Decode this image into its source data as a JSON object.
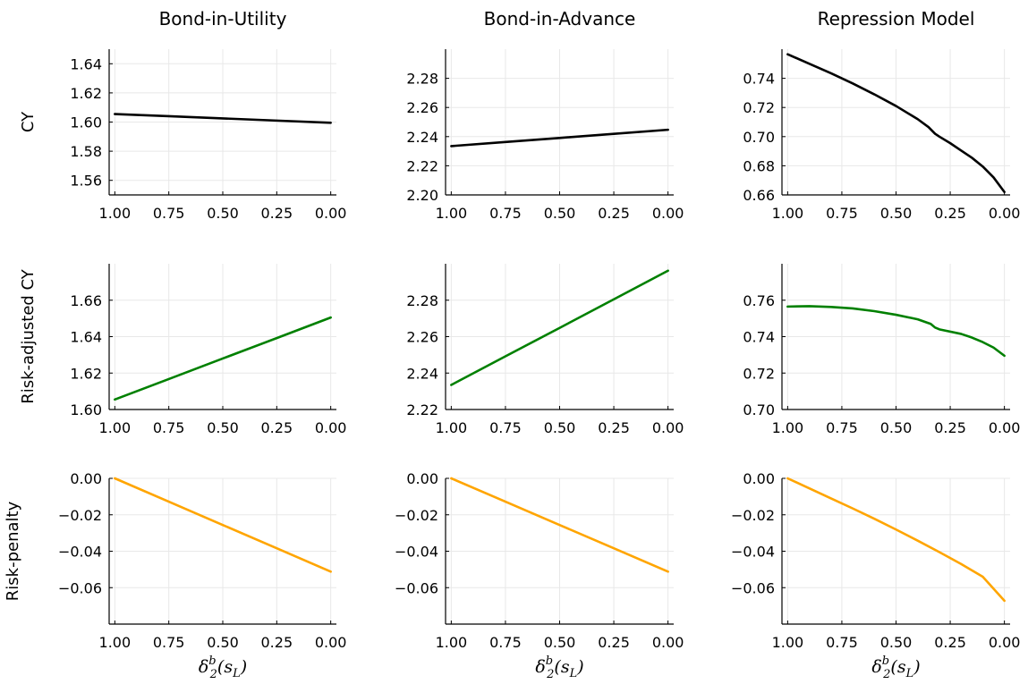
{
  "chart_data": [
    {
      "type": "line",
      "row": 0,
      "col": 0,
      "title": "Bond-in-Utility",
      "ylabel": "CY",
      "xlabel": "",
      "xlim": [
        1.0,
        0.0
      ],
      "ylim": [
        1.55,
        1.65
      ],
      "xticks": [
        "1.00",
        "0.75",
        "0.50",
        "0.25",
        "0.00"
      ],
      "xtick_values": [
        1.0,
        0.75,
        0.5,
        0.25,
        0.0
      ],
      "yticks": [
        "1.56",
        "1.58",
        "1.60",
        "1.62",
        "1.64"
      ],
      "ytick_values": [
        1.56,
        1.58,
        1.6,
        1.62,
        1.64
      ],
      "color": "#000000",
      "series": [
        {
          "x": [
            1.0,
            0.75,
            0.5,
            0.25,
            0.0
          ],
          "y": [
            1.6055,
            1.604,
            1.6025,
            1.601,
            1.5995
          ]
        }
      ]
    },
    {
      "type": "line",
      "row": 0,
      "col": 1,
      "title": "Bond-in-Advance",
      "ylabel": "",
      "xlabel": "",
      "xlim": [
        1.0,
        0.0
      ],
      "ylim": [
        2.2,
        2.3
      ],
      "xticks": [
        "1.00",
        "0.75",
        "0.50",
        "0.25",
        "0.00"
      ],
      "xtick_values": [
        1.0,
        0.75,
        0.5,
        0.25,
        0.0
      ],
      "yticks": [
        "2.20",
        "2.22",
        "2.24",
        "2.26",
        "2.28"
      ],
      "ytick_values": [
        2.2,
        2.22,
        2.24,
        2.26,
        2.28
      ],
      "color": "#000000",
      "series": [
        {
          "x": [
            1.0,
            0.75,
            0.5,
            0.25,
            0.0
          ],
          "y": [
            2.2335,
            2.2363,
            2.2391,
            2.2419,
            2.2447
          ]
        }
      ]
    },
    {
      "type": "line",
      "row": 0,
      "col": 2,
      "title": "Repression Model",
      "ylabel": "",
      "xlabel": "",
      "xlim": [
        1.0,
        0.0
      ],
      "ylim": [
        0.66,
        0.76
      ],
      "xticks": [
        "1.00",
        "0.75",
        "0.50",
        "0.25",
        "0.00"
      ],
      "xtick_values": [
        1.0,
        0.75,
        0.5,
        0.25,
        0.0
      ],
      "yticks": [
        "0.66",
        "0.68",
        "0.70",
        "0.72",
        "0.74"
      ],
      "ytick_values": [
        0.66,
        0.68,
        0.7,
        0.72,
        0.74
      ],
      "color": "#000000",
      "series": [
        {
          "x": [
            1.0,
            0.9,
            0.8,
            0.7,
            0.6,
            0.5,
            0.4,
            0.35,
            0.32,
            0.3,
            0.25,
            0.2,
            0.15,
            0.1,
            0.05,
            0.0
          ],
          "y": [
            0.7565,
            0.75,
            0.7435,
            0.7365,
            0.729,
            0.721,
            0.712,
            0.7065,
            0.702,
            0.7,
            0.6955,
            0.6905,
            0.6855,
            0.6795,
            0.672,
            0.662
          ]
        }
      ]
    },
    {
      "type": "line",
      "row": 1,
      "col": 0,
      "title": "",
      "ylabel": "Risk-adjusted CY",
      "xlabel": "",
      "xlim": [
        1.0,
        0.0
      ],
      "ylim": [
        1.6,
        1.68
      ],
      "xticks": [
        "1.00",
        "0.75",
        "0.50",
        "0.25",
        "0.00"
      ],
      "xtick_values": [
        1.0,
        0.75,
        0.5,
        0.25,
        0.0
      ],
      "yticks": [
        "1.60",
        "1.62",
        "1.64",
        "1.66"
      ],
      "ytick_values": [
        1.6,
        1.62,
        1.64,
        1.66
      ],
      "color": "#008000",
      "series": [
        {
          "x": [
            1.0,
            0.75,
            0.5,
            0.25,
            0.0
          ],
          "y": [
            1.6055,
            1.6167,
            1.628,
            1.6392,
            1.6505
          ]
        }
      ]
    },
    {
      "type": "line",
      "row": 1,
      "col": 1,
      "title": "",
      "ylabel": "",
      "xlabel": "",
      "xlim": [
        1.0,
        0.0
      ],
      "ylim": [
        2.22,
        2.3
      ],
      "xticks": [
        "1.00",
        "0.75",
        "0.50",
        "0.25",
        "0.00"
      ],
      "xtick_values": [
        1.0,
        0.75,
        0.5,
        0.25,
        0.0
      ],
      "yticks": [
        "2.22",
        "2.24",
        "2.26",
        "2.28"
      ],
      "ytick_values": [
        2.22,
        2.24,
        2.26,
        2.28
      ],
      "color": "#008000",
      "series": [
        {
          "x": [
            1.0,
            0.75,
            0.5,
            0.25,
            0.0
          ],
          "y": [
            2.2335,
            2.2492,
            2.2648,
            2.2805,
            2.2962
          ]
        }
      ]
    },
    {
      "type": "line",
      "row": 1,
      "col": 2,
      "title": "",
      "ylabel": "",
      "xlabel": "",
      "xlim": [
        1.0,
        0.0
      ],
      "ylim": [
        0.7,
        0.78
      ],
      "xticks": [
        "1.00",
        "0.75",
        "0.50",
        "0.25",
        "0.00"
      ],
      "xtick_values": [
        1.0,
        0.75,
        0.5,
        0.25,
        0.0
      ],
      "yticks": [
        "0.70",
        "0.72",
        "0.74",
        "0.76"
      ],
      "ytick_values": [
        0.7,
        0.72,
        0.74,
        0.76
      ],
      "color": "#008000",
      "series": [
        {
          "x": [
            1.0,
            0.9,
            0.8,
            0.7,
            0.6,
            0.5,
            0.4,
            0.34,
            0.32,
            0.3,
            0.2,
            0.15,
            0.1,
            0.05,
            0.0
          ],
          "y": [
            0.7565,
            0.7567,
            0.7563,
            0.7555,
            0.754,
            0.752,
            0.7495,
            0.747,
            0.745,
            0.744,
            0.7415,
            0.7395,
            0.737,
            0.734,
            0.7295
          ]
        }
      ]
    },
    {
      "type": "line",
      "row": 2,
      "col": 0,
      "title": "",
      "ylabel": "Risk-penalty",
      "xlabel": "δ₂ᵇ(s_L)",
      "xlim": [
        1.0,
        0.0
      ],
      "ylim": [
        -0.08,
        0.0
      ],
      "xticks": [
        "1.00",
        "0.75",
        "0.50",
        "0.25",
        "0.00"
      ],
      "xtick_values": [
        1.0,
        0.75,
        0.5,
        0.25,
        0.0
      ],
      "yticks": [
        "0.00",
        "−0.02",
        "−0.04",
        "−0.06"
      ],
      "ytick_values": [
        0.0,
        -0.02,
        -0.04,
        -0.06
      ],
      "color": "#FFA500",
      "series": [
        {
          "x": [
            1.0,
            0.75,
            0.5,
            0.25,
            0.0
          ],
          "y": [
            0.0,
            -0.0128,
            -0.0256,
            -0.0384,
            -0.0512
          ]
        }
      ]
    },
    {
      "type": "line",
      "row": 2,
      "col": 1,
      "title": "",
      "ylabel": "",
      "xlabel": "δ₂ᵇ(s_L)",
      "xlim": [
        1.0,
        0.0
      ],
      "ylim": [
        -0.08,
        0.0
      ],
      "xticks": [
        "1.00",
        "0.75",
        "0.50",
        "0.25",
        "0.00"
      ],
      "xtick_values": [
        1.0,
        0.75,
        0.5,
        0.25,
        0.0
      ],
      "yticks": [
        "0.00",
        "−0.02",
        "−0.04",
        "−0.06"
      ],
      "ytick_values": [
        0.0,
        -0.02,
        -0.04,
        -0.06
      ],
      "color": "#FFA500",
      "series": [
        {
          "x": [
            1.0,
            0.75,
            0.5,
            0.25,
            0.0
          ],
          "y": [
            0.0,
            -0.0128,
            -0.0256,
            -0.0384,
            -0.0512
          ]
        }
      ]
    },
    {
      "type": "line",
      "row": 2,
      "col": 2,
      "title": "",
      "ylabel": "",
      "xlabel": "δ₂ᵇ(s_L)",
      "xlim": [
        1.0,
        0.0
      ],
      "ylim": [
        -0.08,
        0.0
      ],
      "xticks": [
        "1.00",
        "0.75",
        "0.50",
        "0.25",
        "0.00"
      ],
      "xtick_values": [
        1.0,
        0.75,
        0.5,
        0.25,
        0.0
      ],
      "yticks": [
        "0.00",
        "−0.02",
        "−0.04",
        "−0.06"
      ],
      "ytick_values": [
        0.0,
        -0.02,
        -0.04,
        -0.06
      ],
      "color": "#FFA500",
      "series": [
        {
          "x": [
            1.0,
            0.9,
            0.8,
            0.7,
            0.6,
            0.5,
            0.4,
            0.3,
            0.2,
            0.1,
            0.0
          ],
          "y": [
            0.0,
            -0.0055,
            -0.011,
            -0.0165,
            -0.0222,
            -0.0281,
            -0.0342,
            -0.0405,
            -0.047,
            -0.054,
            -0.0672
          ]
        }
      ]
    }
  ]
}
